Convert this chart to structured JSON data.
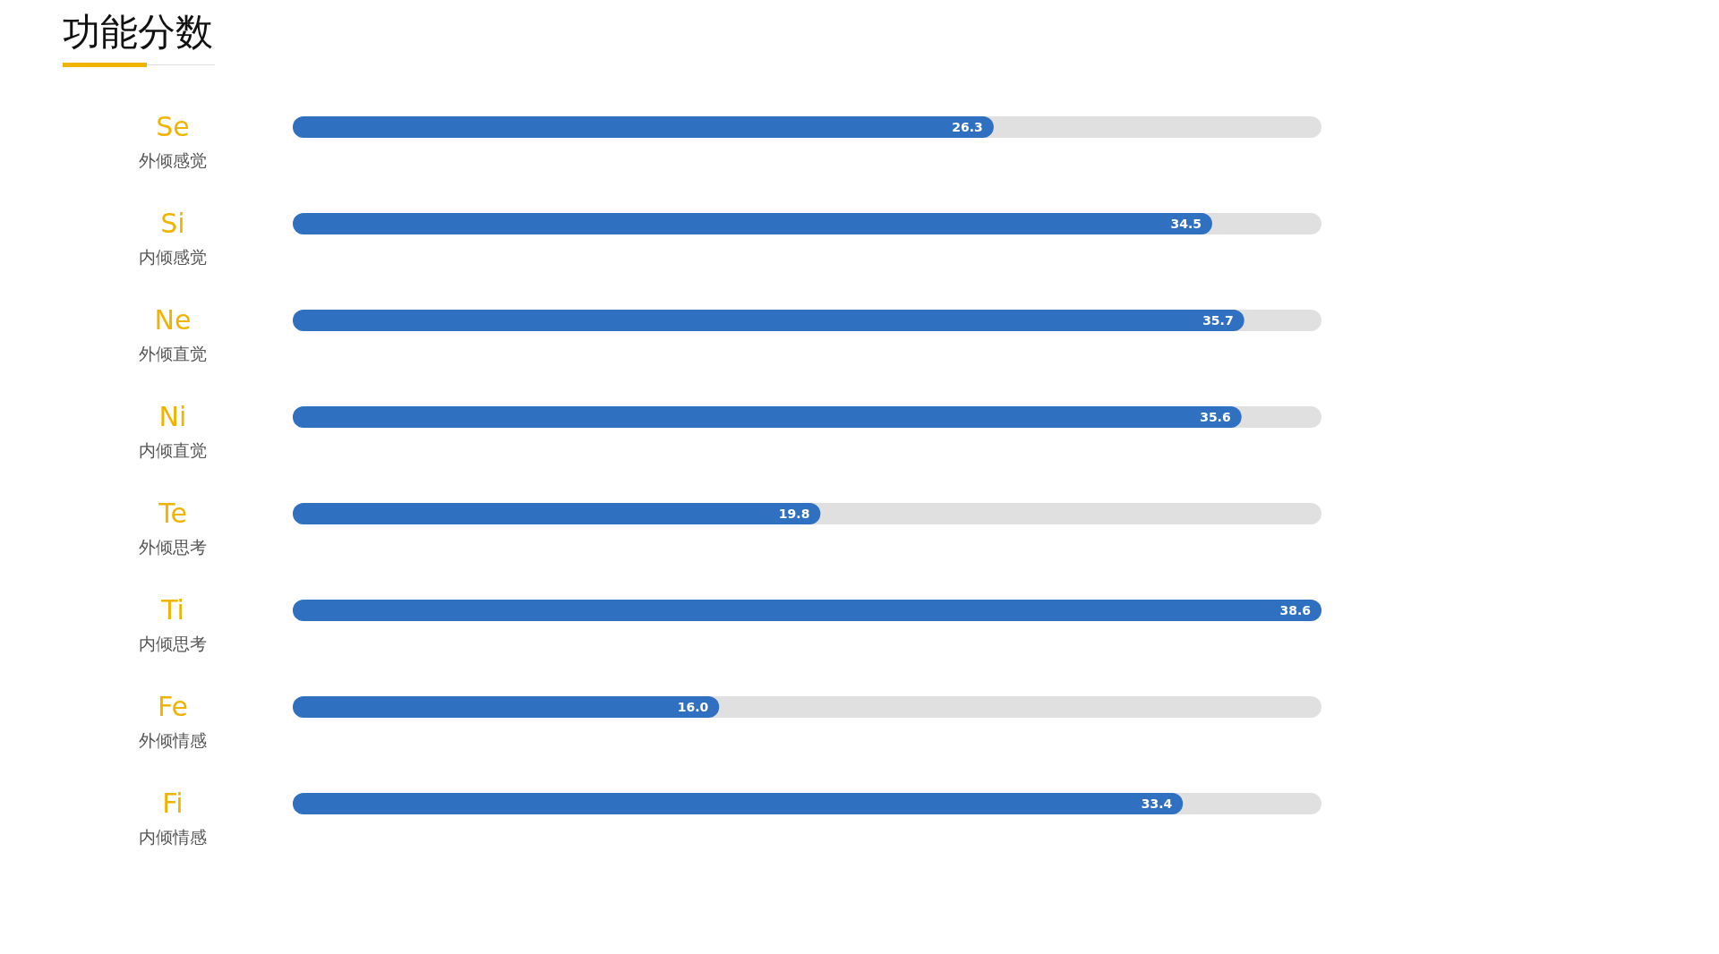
{
  "chart_data": {
    "type": "bar",
    "title": "功能分数",
    "orientation": "horizontal",
    "categories": [
      "Se\n外倾感觉",
      "Si\n内倾感觉",
      "Ne\n外倾直觉",
      "Ni\n内倾直觉",
      "Te\n外倾思考",
      "Ti\n内倾思考",
      "Fe\n外倾情感",
      "Fi\n内倾情感"
    ],
    "values": [
      26.3,
      34.5,
      35.7,
      35.6,
      19.8,
      38.6,
      16.0,
      33.4
    ],
    "value_labels": [
      "26.3",
      "34.5",
      "35.7",
      "35.6",
      "19.8",
      "38.6",
      "16.0",
      "33.4"
    ],
    "color": "#3070c0",
    "grid": false,
    "legend": false
  }
}
